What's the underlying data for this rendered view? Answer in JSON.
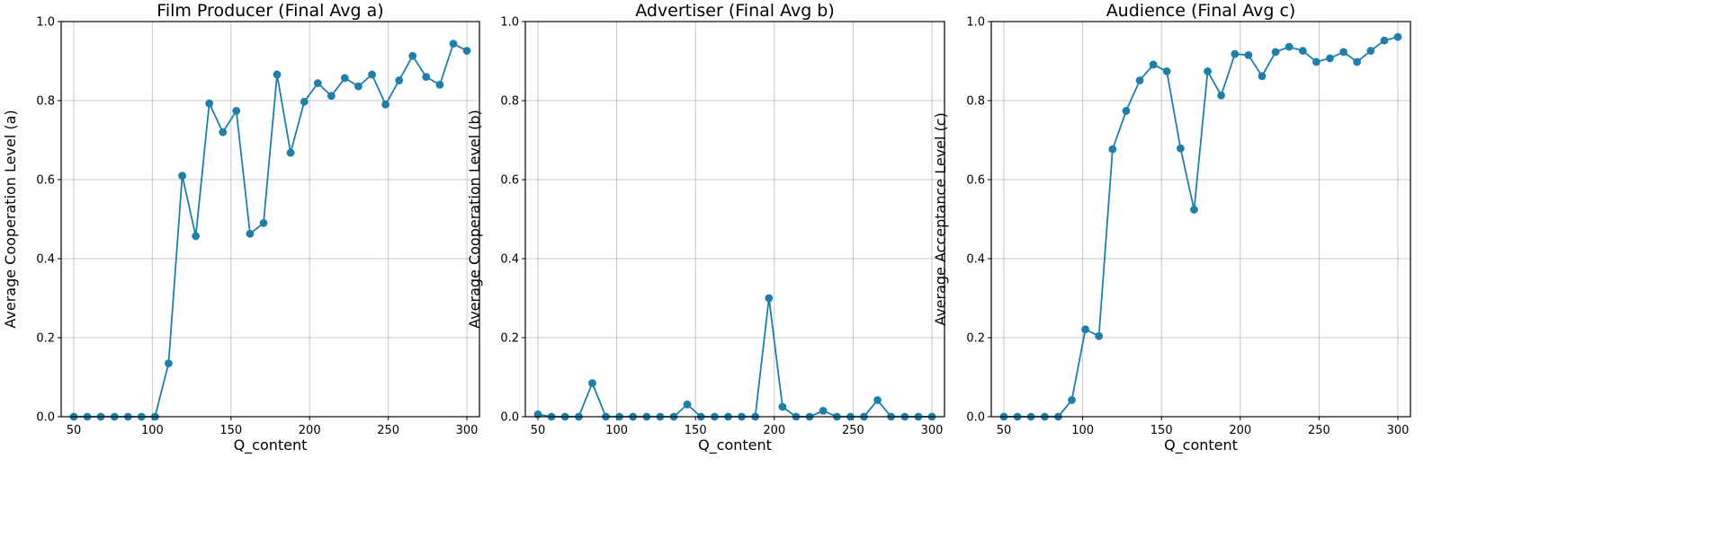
{
  "figure": {
    "color": "#1f7fa8"
  },
  "chart_data": [
    {
      "type": "line",
      "title": "Film Producer (Final Avg a)",
      "xlabel": "Q_content",
      "ylabel": "Average Cooperation Level (a)",
      "xlim": [
        42,
        308
      ],
      "ylim": [
        0,
        1.0
      ],
      "xticks": [
        50,
        100,
        150,
        200,
        250,
        300
      ],
      "yticks": [
        0.0,
        0.2,
        0.4,
        0.6,
        0.8,
        1.0
      ],
      "xtick_labels": [
        "50",
        "100",
        "150",
        "200",
        "250",
        "300"
      ],
      "ytick_labels": [
        "0.0",
        "0.2",
        "0.4",
        "0.6",
        "0.8",
        "1.0"
      ],
      "grid": true,
      "marker": "circle",
      "x": [
        50,
        58.6,
        67.2,
        75.9,
        84.5,
        93.1,
        101.7,
        110.3,
        119,
        127.6,
        136.2,
        144.8,
        153.4,
        162.1,
        170.7,
        179.3,
        187.9,
        196.6,
        205.2,
        213.8,
        222.4,
        231,
        239.7,
        248.3,
        256.9,
        265.5,
        274.1,
        282.8,
        291.4,
        300
      ],
      "y": [
        0.0,
        0.0,
        0.0,
        0.0,
        0.0,
        0.0,
        0.0,
        0.135,
        0.61,
        0.457,
        0.793,
        0.72,
        0.774,
        0.463,
        0.49,
        0.866,
        0.668,
        0.797,
        0.844,
        0.812,
        0.857,
        0.836,
        0.866,
        0.79,
        0.851,
        0.913,
        0.86,
        0.84,
        0.944,
        0.926
      ]
    },
    {
      "type": "line",
      "title": "Advertiser (Final Avg b)",
      "xlabel": "Q_content",
      "ylabel": "Average Cooperation Level (b)",
      "xlim": [
        42,
        308
      ],
      "ylim": [
        0,
        1.0
      ],
      "xticks": [
        50,
        100,
        150,
        200,
        250,
        300
      ],
      "yticks": [
        0.0,
        0.2,
        0.4,
        0.6,
        0.8,
        1.0
      ],
      "xtick_labels": [
        "50",
        "100",
        "150",
        "200",
        "250",
        "300"
      ],
      "ytick_labels": [
        "0.0",
        "0.2",
        "0.4",
        "0.6",
        "0.8",
        "1.0"
      ],
      "grid": true,
      "marker": "circle",
      "x": [
        50,
        58.6,
        67.2,
        75.9,
        84.5,
        93.1,
        101.7,
        110.3,
        119,
        127.6,
        136.2,
        144.8,
        153.4,
        162.1,
        170.7,
        179.3,
        187.9,
        196.6,
        205.2,
        213.8,
        222.4,
        231,
        239.7,
        248.3,
        256.9,
        265.5,
        274.1,
        282.8,
        291.4,
        300
      ],
      "y": [
        0.006,
        0.0,
        0.0,
        0.0,
        0.085,
        0.0,
        0.0,
        0.0,
        0.0,
        0.0,
        0.0,
        0.031,
        0.0,
        0.0,
        0.0,
        0.0,
        0.0,
        0.3,
        0.025,
        0.0,
        0.0,
        0.015,
        0.0,
        0.0,
        0.0,
        0.042,
        0.0,
        0.0,
        0.0,
        0.0
      ]
    },
    {
      "type": "line",
      "title": "Audience (Final Avg c)",
      "xlabel": "Q_content",
      "ylabel": "Average Acceptance Level (c)",
      "xlim": [
        42,
        308
      ],
      "ylim": [
        0,
        1.0
      ],
      "xticks": [
        50,
        100,
        150,
        200,
        250,
        300
      ],
      "yticks": [
        0.0,
        0.2,
        0.4,
        0.6,
        0.8,
        1.0
      ],
      "xtick_labels": [
        "50",
        "100",
        "150",
        "200",
        "250",
        "300"
      ],
      "ytick_labels": [
        "0.0",
        "0.2",
        "0.4",
        "0.6",
        "0.8",
        "1.0"
      ],
      "grid": true,
      "marker": "circle",
      "x": [
        50,
        58.6,
        67.2,
        75.9,
        84.5,
        93.1,
        101.7,
        110.3,
        119,
        127.6,
        136.2,
        144.8,
        153.4,
        162.1,
        170.7,
        179.3,
        187.9,
        196.6,
        205.2,
        213.8,
        222.4,
        231,
        239.7,
        248.3,
        256.9,
        265.5,
        274.1,
        282.8,
        291.4,
        300
      ],
      "y": [
        0.0,
        0.0,
        0.0,
        0.0,
        0.0,
        0.042,
        0.221,
        0.204,
        0.677,
        0.774,
        0.851,
        0.891,
        0.874,
        0.679,
        0.524,
        0.874,
        0.813,
        0.918,
        0.915,
        0.862,
        0.923,
        0.936,
        0.926,
        0.898,
        0.907,
        0.923,
        0.898,
        0.926,
        0.952,
        0.961
      ]
    }
  ]
}
